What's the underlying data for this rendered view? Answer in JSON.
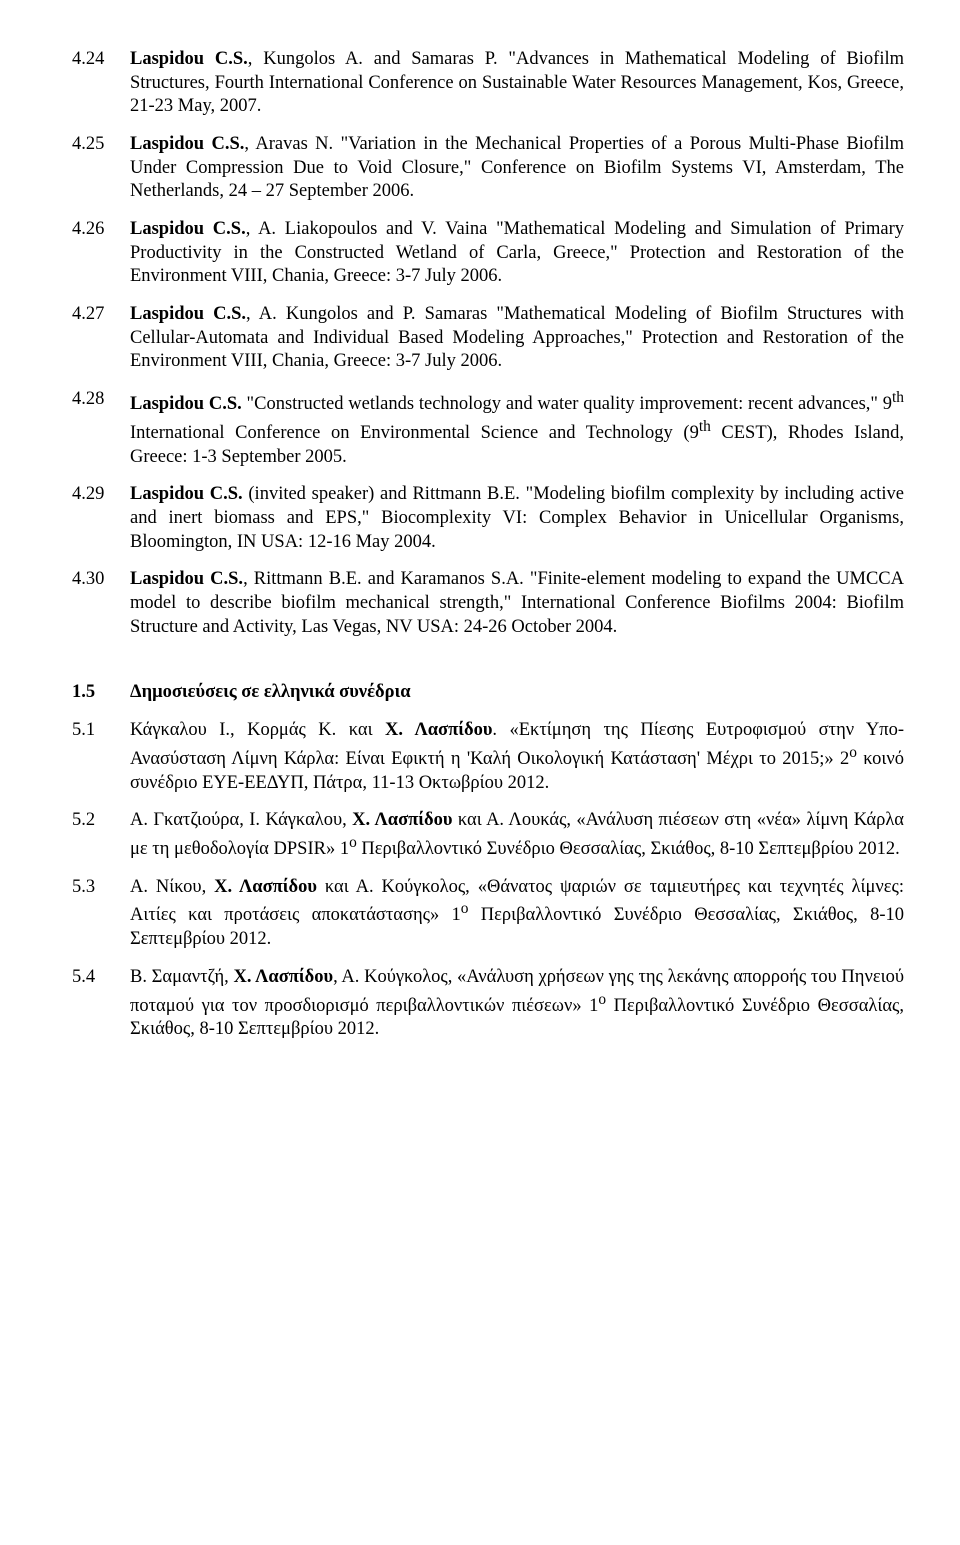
{
  "entries": [
    {
      "num": "4.24",
      "segments": [
        {
          "text": "Laspidou C.S.",
          "bold": true
        },
        {
          "text": ", Kungolos A. and Samaras P. \"Advances in Mathematical Modeling of Biofilm Structures, Fourth International Conference on Sustainable Water Resources Management, Kos, Greece, 21-23 May, 2007."
        }
      ]
    },
    {
      "num": "4.25",
      "segments": [
        {
          "text": "Laspidou C.S.",
          "bold": true
        },
        {
          "text": ", Aravas N. \"Variation in the Mechanical Properties of a Porous Multi-Phase Biofilm Under Compression Due to Void Closure,\" Conference on Biofilm Systems VI, Amsterdam, The Netherlands, 24 – 27 September 2006."
        }
      ]
    },
    {
      "num": "4.26",
      "segments": [
        {
          "text": "Laspidou C.S.",
          "bold": true
        },
        {
          "text": ", A. Liakopoulos and V. Vaina \"Mathematical Modeling and Simulation of Primary Productivity in the Constructed Wetland of Carla, Greece,\" Protection and Restoration of the Environment VIII, Chania, Greece: 3-7 July 2006."
        }
      ]
    },
    {
      "num": "4.27",
      "segments": [
        {
          "text": "Laspidou C.S.",
          "bold": true
        },
        {
          "text": ", A. Kungolos and P. Samaras \"Mathematical Modeling of Biofilm Structures with Cellular-Automata and Individual Based Modeling Approaches,\" Protection and Restoration of the Environment VIII, Chania, Greece: 3-7 July 2006."
        }
      ]
    },
    {
      "num": "4.28",
      "segments": [
        {
          "text": "Laspidou C.S.",
          "bold": true
        },
        {
          "text": " \"Constructed wetlands technology and water quality improvement: recent advances,\" 9"
        },
        {
          "text": "th",
          "sup": true
        },
        {
          "text": " International Conference on Environmental Science and Technology (9"
        },
        {
          "text": "th",
          "sup": true
        },
        {
          "text": " CEST), Rhodes Island, Greece: 1-3 September 2005."
        }
      ]
    },
    {
      "num": "4.29",
      "segments": [
        {
          "text": "Laspidou C.S.",
          "bold": true
        },
        {
          "text": " (invited speaker) and Rittmann B.E. \"Modeling biofilm complexity by including active and inert biomass and EPS,\" Biocomplexity VI: Complex Behavior in Unicellular Organisms, Bloomington, IN USA: 12-16 May 2004."
        }
      ]
    },
    {
      "num": "4.30",
      "segments": [
        {
          "text": "Laspidou C.S.",
          "bold": true
        },
        {
          "text": ", Rittmann B.E. and Karamanos S.A. \"Finite-element modeling to expand the UMCCA model to describe biofilm mechanical strength,\" International Conference Biofilms 2004: Biofilm Structure and Activity, Las Vegas, NV USA: 24-26 October 2004."
        }
      ]
    }
  ],
  "section": {
    "num": "1.5",
    "title": "Δημοσιεύσεις σε ελληνικά συνέδρια"
  },
  "greek_entries": [
    {
      "num": "5.1",
      "segments": [
        {
          "text": "Κάγκαλου Ι., Κορμάς Κ. και "
        },
        {
          "text": "Χ. Λασπίδου",
          "bold": true
        },
        {
          "text": ".  «Εκτίμηση της Πίεσης Ευτροφισμού στην Υπο-Ανασύσταση Λίμνη Κάρλα: Είναι Εφικτή η 'Καλή Οικολογική Κατάσταση' Μέχρι το 2015;» 2"
        },
        {
          "text": "ο",
          "sup": true
        },
        {
          "text": " κοινό συνέδριο ΕΥΕ-ΕΕΔΥΠ, Πάτρα, 11-13 Οκτωβρίου 2012."
        }
      ]
    },
    {
      "num": "5.2",
      "segments": [
        {
          "text": "Α. Γκατζιούρα, Ι. Κάγκαλου, "
        },
        {
          "text": "Χ. Λασπίδου",
          "bold": true
        },
        {
          "text": " και Α. Λουκάς, «Ανάλυση πιέσεων στη «νέα» λίμνη Κάρλα με τη μεθοδολογία DPSIR» 1"
        },
        {
          "text": "ο",
          "sup": true
        },
        {
          "text": " Περιβαλλοντικό Συνέδριο Θεσσαλίας, Σκιάθος, 8-10 Σεπτεμβρίου 2012."
        }
      ]
    },
    {
      "num": "5.3",
      "segments": [
        {
          "text": "Α. Νίκου, "
        },
        {
          "text": "Χ. Λασπίδου",
          "bold": true
        },
        {
          "text": " και Α. Κούγκολος, «Θάνατος ψαριών σε ταμιευτήρες και τεχνητές λίμνες:  Αιτίες και προτάσεις αποκατάστασης» 1"
        },
        {
          "text": "ο",
          "sup": true
        },
        {
          "text": " Περιβαλλοντικό Συνέδριο Θεσσαλίας, Σκιάθος, 8-10 Σεπτεμβρίου 2012."
        }
      ]
    },
    {
      "num": "5.4",
      "segments": [
        {
          "text": "Β. Σαμαντζή, "
        },
        {
          "text": "Χ. Λασπίδου",
          "bold": true
        },
        {
          "text": ", Α. Κούγκολος, «Ανάλυση χρήσεων γης της λεκάνης απορροής του Πηνειού ποταμού για τον προσδιορισμό περιβαλλοντικών πιέσεων» 1"
        },
        {
          "text": "ο",
          "sup": true
        },
        {
          "text": " Περιβαλλοντικό Συνέδριο Θεσσαλίας, Σκιάθος, 8-10 Σεπτεμβρίου 2012."
        }
      ]
    }
  ]
}
